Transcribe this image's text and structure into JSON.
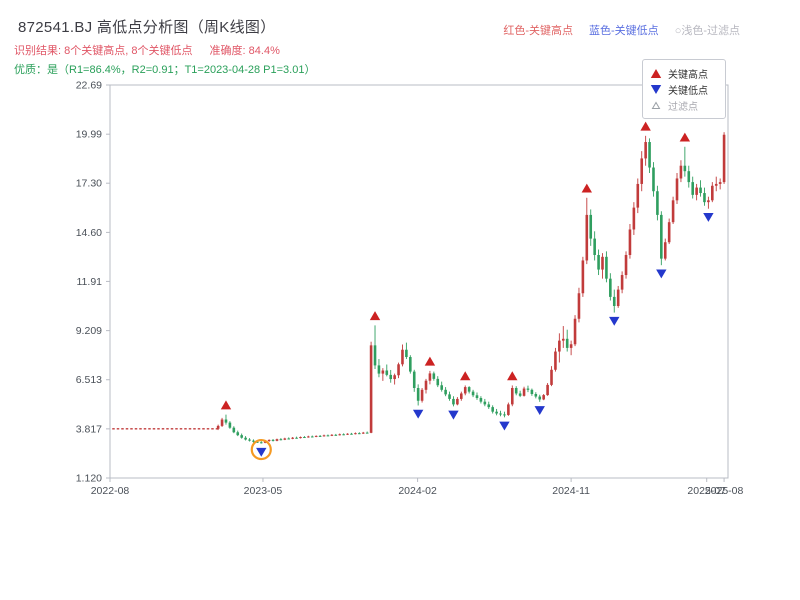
{
  "header": {
    "title": "872541.BJ 高低点分析图（周K线图）",
    "legend": {
      "high": "红色-关键高点",
      "low": "蓝色-关键低点",
      "filtered": "○浅色-过滤点"
    },
    "result_line": {
      "label": "识别结果:",
      "value": "8个关键高点, 8个关键低点",
      "accuracy_label": "准确度:",
      "accuracy": "84.4%"
    },
    "quality_line": {
      "label": "优质：是",
      "detail": "（R1=86.4%，R2=0.91；T1=2023-04-28 P1=3.01）"
    }
  },
  "chart_legend": {
    "items": [
      {
        "label": "关键高点",
        "marker": "triangle-up",
        "color": "#cc2222",
        "muted": false
      },
      {
        "label": "关键低点",
        "marker": "triangle-down",
        "color": "#2438cc",
        "muted": false
      },
      {
        "label": "过滤点",
        "marker": "triangle-hollow",
        "color": "#9aa0a6",
        "muted": true
      }
    ]
  },
  "chart_data": {
    "type": "candlestick",
    "title": "872541.BJ 高低点分析图（周K线图）",
    "x_range": [
      "2022-08-01",
      "2025-08-08"
    ],
    "y_range": [
      1.12,
      22.69
    ],
    "y_ticks": [
      "22.69",
      "19.99",
      "17.30",
      "14.60",
      "11.91",
      "9.209",
      "6.513",
      "3.817",
      "1.120"
    ],
    "x_ticks": [
      {
        "date": "2022-08-01",
        "label": "2022-08"
      },
      {
        "date": "2023-05-01",
        "label": "2023-05"
      },
      {
        "date": "2024-02-01",
        "label": "2024-02"
      },
      {
        "date": "2024-11-01",
        "label": "2024-11"
      },
      {
        "date": "2025-07-01",
        "label": "2025-07"
      },
      {
        "date": "2025-08-01",
        "label": "2025-08"
      }
    ],
    "grid": false,
    "legend_position": "top-right",
    "colors": {
      "up": "#c13b3b",
      "down": "#2f9e5f",
      "flat_line": "#c13b3b",
      "key_high": "#cc2222",
      "key_low": "#2438cc",
      "highlight": "#f59a23",
      "axis": "#b9bcc4",
      "tick_text": "#4a5058"
    },
    "flat_segment": {
      "start": "2022-08-05",
      "end": "2023-02-10",
      "price": 3.82
    },
    "candles": [
      [
        "2023-02-10",
        3.82,
        4.05,
        3.75,
        3.98
      ],
      [
        "2023-02-17",
        3.98,
        4.42,
        3.92,
        4.33
      ],
      [
        "2023-02-24",
        4.33,
        4.6,
        4.05,
        4.16
      ],
      [
        "2023-03-03",
        4.16,
        4.24,
        3.82,
        3.88
      ],
      [
        "2023-03-10",
        3.88,
        3.96,
        3.58,
        3.63
      ],
      [
        "2023-03-17",
        3.63,
        3.72,
        3.42,
        3.47
      ],
      [
        "2023-03-24",
        3.47,
        3.56,
        3.28,
        3.33
      ],
      [
        "2023-03-31",
        3.33,
        3.42,
        3.18,
        3.23
      ],
      [
        "2023-04-07",
        3.23,
        3.31,
        3.12,
        3.17
      ],
      [
        "2023-04-14",
        3.17,
        3.24,
        3.06,
        3.11
      ],
      [
        "2023-04-21",
        3.11,
        3.18,
        3.04,
        3.08
      ],
      [
        "2023-04-28",
        3.08,
        3.14,
        3.01,
        3.05
      ],
      [
        "2023-05-05",
        3.05,
        3.18,
        3.03,
        3.15
      ],
      [
        "2023-05-12",
        3.15,
        3.24,
        3.1,
        3.21
      ],
      [
        "2023-05-19",
        3.21,
        3.26,
        3.12,
        3.16
      ],
      [
        "2023-05-26",
        3.16,
        3.28,
        3.14,
        3.25
      ],
      [
        "2023-06-02",
        3.25,
        3.31,
        3.18,
        3.22
      ],
      [
        "2023-06-09",
        3.22,
        3.33,
        3.2,
        3.29
      ],
      [
        "2023-06-16",
        3.29,
        3.35,
        3.24,
        3.27
      ],
      [
        "2023-06-23",
        3.27,
        3.37,
        3.25,
        3.33
      ],
      [
        "2023-06-30",
        3.33,
        3.39,
        3.28,
        3.31
      ],
      [
        "2023-07-07",
        3.31,
        3.4,
        3.29,
        3.37
      ],
      [
        "2023-07-14",
        3.37,
        3.42,
        3.32,
        3.35
      ],
      [
        "2023-07-21",
        3.35,
        3.44,
        3.33,
        3.4
      ],
      [
        "2023-07-28",
        3.4,
        3.45,
        3.35,
        3.38
      ],
      [
        "2023-08-04",
        3.38,
        3.46,
        3.36,
        3.43
      ],
      [
        "2023-08-11",
        3.43,
        3.48,
        3.38,
        3.41
      ],
      [
        "2023-08-18",
        3.41,
        3.5,
        3.39,
        3.46
      ],
      [
        "2023-08-25",
        3.46,
        3.51,
        3.41,
        3.44
      ],
      [
        "2023-09-01",
        3.44,
        3.53,
        3.42,
        3.49
      ],
      [
        "2023-09-08",
        3.49,
        3.54,
        3.44,
        3.47
      ],
      [
        "2023-09-15",
        3.47,
        3.56,
        3.45,
        3.52
      ],
      [
        "2023-09-22",
        3.52,
        3.57,
        3.47,
        3.5
      ],
      [
        "2023-09-29",
        3.5,
        3.58,
        3.48,
        3.55
      ],
      [
        "2023-10-06",
        3.55,
        3.6,
        3.5,
        3.53
      ],
      [
        "2023-10-13",
        3.53,
        3.62,
        3.51,
        3.58
      ],
      [
        "2023-10-20",
        3.58,
        3.63,
        3.53,
        3.56
      ],
      [
        "2023-10-27",
        3.56,
        3.65,
        3.54,
        3.61
      ],
      [
        "2023-11-03",
        3.61,
        3.67,
        3.56,
        3.6
      ],
      [
        "2023-11-10",
        3.6,
        8.6,
        3.58,
        8.4
      ],
      [
        "2023-11-17",
        8.4,
        9.5,
        7.1,
        7.3
      ],
      [
        "2023-11-24",
        7.3,
        7.65,
        6.65,
        6.85
      ],
      [
        "2023-12-01",
        6.85,
        7.15,
        6.45,
        7.02
      ],
      [
        "2023-12-08",
        7.02,
        7.35,
        6.7,
        6.78
      ],
      [
        "2023-12-15",
        6.78,
        7.05,
        6.35,
        6.55
      ],
      [
        "2023-12-22",
        6.55,
        6.85,
        6.25,
        6.76
      ],
      [
        "2023-12-29",
        6.76,
        7.45,
        6.6,
        7.36
      ],
      [
        "2024-01-05",
        7.36,
        8.45,
        7.25,
        8.16
      ],
      [
        "2024-01-12",
        8.16,
        8.55,
        7.65,
        7.76
      ],
      [
        "2024-01-19",
        7.76,
        7.86,
        6.85,
        6.96
      ],
      [
        "2024-01-26",
        6.96,
        7.06,
        5.85,
        6.06
      ],
      [
        "2024-02-02",
        6.06,
        6.26,
        5.1,
        5.36
      ],
      [
        "2024-02-09",
        5.36,
        6.06,
        5.26,
        5.96
      ],
      [
        "2024-02-16",
        5.96,
        6.56,
        5.76,
        6.46
      ],
      [
        "2024-02-23",
        6.46,
        7.0,
        6.26,
        6.86
      ],
      [
        "2024-03-01",
        6.86,
        6.96,
        6.46,
        6.56
      ],
      [
        "2024-03-08",
        6.56,
        6.71,
        6.11,
        6.21
      ],
      [
        "2024-03-15",
        6.21,
        6.41,
        5.86,
        5.96
      ],
      [
        "2024-03-22",
        5.96,
        6.11,
        5.61,
        5.71
      ],
      [
        "2024-03-29",
        5.71,
        5.86,
        5.36,
        5.46
      ],
      [
        "2024-04-05",
        5.46,
        5.61,
        5.05,
        5.16
      ],
      [
        "2024-04-12",
        5.16,
        5.56,
        5.11,
        5.46
      ],
      [
        "2024-04-19",
        5.46,
        5.86,
        5.36,
        5.76
      ],
      [
        "2024-04-26",
        5.76,
        6.2,
        5.66,
        6.11
      ],
      [
        "2024-05-03",
        6.11,
        6.16,
        5.76,
        5.86
      ],
      [
        "2024-05-10",
        5.86,
        5.96,
        5.56,
        5.66
      ],
      [
        "2024-05-17",
        5.66,
        5.81,
        5.41,
        5.51
      ],
      [
        "2024-05-24",
        5.51,
        5.61,
        5.21,
        5.31
      ],
      [
        "2024-05-31",
        5.31,
        5.46,
        5.06,
        5.16
      ],
      [
        "2024-06-07",
        5.16,
        5.31,
        4.91,
        5.01
      ],
      [
        "2024-06-14",
        5.01,
        5.11,
        4.66,
        4.76
      ],
      [
        "2024-06-21",
        4.76,
        4.91,
        4.56,
        4.66
      ],
      [
        "2024-06-28",
        4.66,
        4.81,
        4.51,
        4.61
      ],
      [
        "2024-07-05",
        4.61,
        4.76,
        4.45,
        4.58
      ],
      [
        "2024-07-12",
        4.58,
        5.26,
        4.53,
        5.16
      ],
      [
        "2024-07-19",
        5.16,
        6.2,
        5.06,
        6.06
      ],
      [
        "2024-07-26",
        6.06,
        6.16,
        5.66,
        5.76
      ],
      [
        "2024-08-02",
        5.76,
        5.91,
        5.56,
        5.63
      ],
      [
        "2024-08-09",
        5.63,
        6.13,
        5.59,
        6.03
      ],
      [
        "2024-08-16",
        6.03,
        6.19,
        5.83,
        5.96
      ],
      [
        "2024-08-23",
        5.96,
        6.03,
        5.63,
        5.73
      ],
      [
        "2024-08-30",
        5.73,
        5.83,
        5.49,
        5.59
      ],
      [
        "2024-09-06",
        5.59,
        5.69,
        5.3,
        5.43
      ],
      [
        "2024-09-13",
        5.43,
        5.73,
        5.39,
        5.67
      ],
      [
        "2024-09-20",
        5.67,
        6.33,
        5.63,
        6.23
      ],
      [
        "2024-09-27",
        6.23,
        7.26,
        6.16,
        7.06
      ],
      [
        "2024-10-04",
        7.06,
        8.26,
        6.96,
        8.06
      ],
      [
        "2024-10-11",
        8.06,
        9.06,
        7.46,
        8.66
      ],
      [
        "2024-10-18",
        8.66,
        9.46,
        8.26,
        8.76
      ],
      [
        "2024-10-25",
        8.76,
        9.26,
        8.06,
        8.26
      ],
      [
        "2024-11-01",
        8.26,
        8.66,
        7.86,
        8.46
      ],
      [
        "2024-11-08",
        8.46,
        10.06,
        8.36,
        9.86
      ],
      [
        "2024-11-15",
        9.86,
        11.56,
        9.66,
        11.26
      ],
      [
        "2024-11-22",
        11.26,
        13.26,
        11.06,
        13.06
      ],
      [
        "2024-11-29",
        13.06,
        16.5,
        12.86,
        15.56
      ],
      [
        "2024-12-06",
        15.56,
        15.86,
        13.86,
        14.26
      ],
      [
        "2024-12-13",
        14.26,
        14.66,
        13.06,
        13.36
      ],
      [
        "2024-12-20",
        13.36,
        13.66,
        12.26,
        12.56
      ],
      [
        "2024-12-27",
        12.56,
        13.46,
        12.06,
        13.26
      ],
      [
        "2025-01-03",
        13.26,
        13.56,
        11.86,
        12.06
      ],
      [
        "2025-01-10",
        12.06,
        12.36,
        10.86,
        11.06
      ],
      [
        "2025-01-17",
        11.06,
        11.46,
        10.2,
        10.56
      ],
      [
        "2025-01-24",
        10.56,
        11.66,
        10.46,
        11.46
      ],
      [
        "2025-01-31",
        11.46,
        12.46,
        11.26,
        12.26
      ],
      [
        "2025-02-07",
        12.26,
        13.56,
        12.06,
        13.36
      ],
      [
        "2025-02-14",
        13.36,
        15.06,
        13.16,
        14.76
      ],
      [
        "2025-02-21",
        14.76,
        16.26,
        14.46,
        15.96
      ],
      [
        "2025-02-28",
        15.96,
        17.56,
        15.66,
        17.26
      ],
      [
        "2025-03-07",
        17.26,
        19.06,
        16.86,
        18.66
      ],
      [
        "2025-03-14",
        18.66,
        19.9,
        18.26,
        19.56
      ],
      [
        "2025-03-21",
        19.56,
        19.76,
        17.86,
        18.16
      ],
      [
        "2025-03-28",
        18.16,
        18.46,
        16.56,
        16.86
      ],
      [
        "2025-04-04",
        16.86,
        17.16,
        15.26,
        15.56
      ],
      [
        "2025-04-11",
        15.56,
        15.76,
        12.8,
        13.16
      ],
      [
        "2025-04-18",
        13.16,
        14.26,
        13.06,
        14.06
      ],
      [
        "2025-04-25",
        14.06,
        15.36,
        13.96,
        15.16
      ],
      [
        "2025-05-02",
        15.16,
        16.56,
        15.06,
        16.36
      ],
      [
        "2025-05-09",
        16.36,
        17.86,
        16.16,
        17.56
      ],
      [
        "2025-05-16",
        17.56,
        18.56,
        17.36,
        18.26
      ],
      [
        "2025-05-23",
        18.26,
        19.3,
        17.66,
        17.96
      ],
      [
        "2025-05-30",
        17.96,
        18.26,
        17.06,
        17.36
      ],
      [
        "2025-06-06",
        17.36,
        17.66,
        16.46,
        16.66
      ],
      [
        "2025-06-13",
        16.66,
        17.26,
        16.36,
        17.06
      ],
      [
        "2025-06-20",
        17.06,
        17.46,
        16.56,
        16.76
      ],
      [
        "2025-06-27",
        16.76,
        17.06,
        16.06,
        16.26
      ],
      [
        "2025-07-04",
        16.26,
        16.56,
        15.9,
        16.36
      ],
      [
        "2025-07-11",
        16.36,
        17.36,
        16.26,
        17.16
      ],
      [
        "2025-07-18",
        17.16,
        17.66,
        16.86,
        17.26
      ],
      [
        "2025-07-25",
        17.26,
        17.56,
        16.96,
        17.36
      ],
      [
        "2025-08-01",
        17.36,
        20.1,
        17.26,
        19.96
      ]
    ],
    "key_highs": [
      {
        "date": "2023-02-24",
        "price": 4.6
      },
      {
        "date": "2023-11-17",
        "price": 9.5
      },
      {
        "date": "2024-02-23",
        "price": 7.0
      },
      {
        "date": "2024-04-26",
        "price": 6.2
      },
      {
        "date": "2024-07-19",
        "price": 6.2
      },
      {
        "date": "2024-11-29",
        "price": 16.5
      },
      {
        "date": "2025-03-14",
        "price": 19.9
      },
      {
        "date": "2025-05-23",
        "price": 19.3
      }
    ],
    "key_lows": [
      {
        "date": "2023-04-28",
        "price": 3.01,
        "highlighted": true
      },
      {
        "date": "2024-02-02",
        "price": 5.1
      },
      {
        "date": "2024-04-05",
        "price": 5.05
      },
      {
        "date": "2024-07-05",
        "price": 4.45
      },
      {
        "date": "2024-09-06",
        "price": 5.3
      },
      {
        "date": "2025-01-17",
        "price": 10.2
      },
      {
        "date": "2025-04-11",
        "price": 12.8
      },
      {
        "date": "2025-07-04",
        "price": 15.9
      }
    ]
  }
}
